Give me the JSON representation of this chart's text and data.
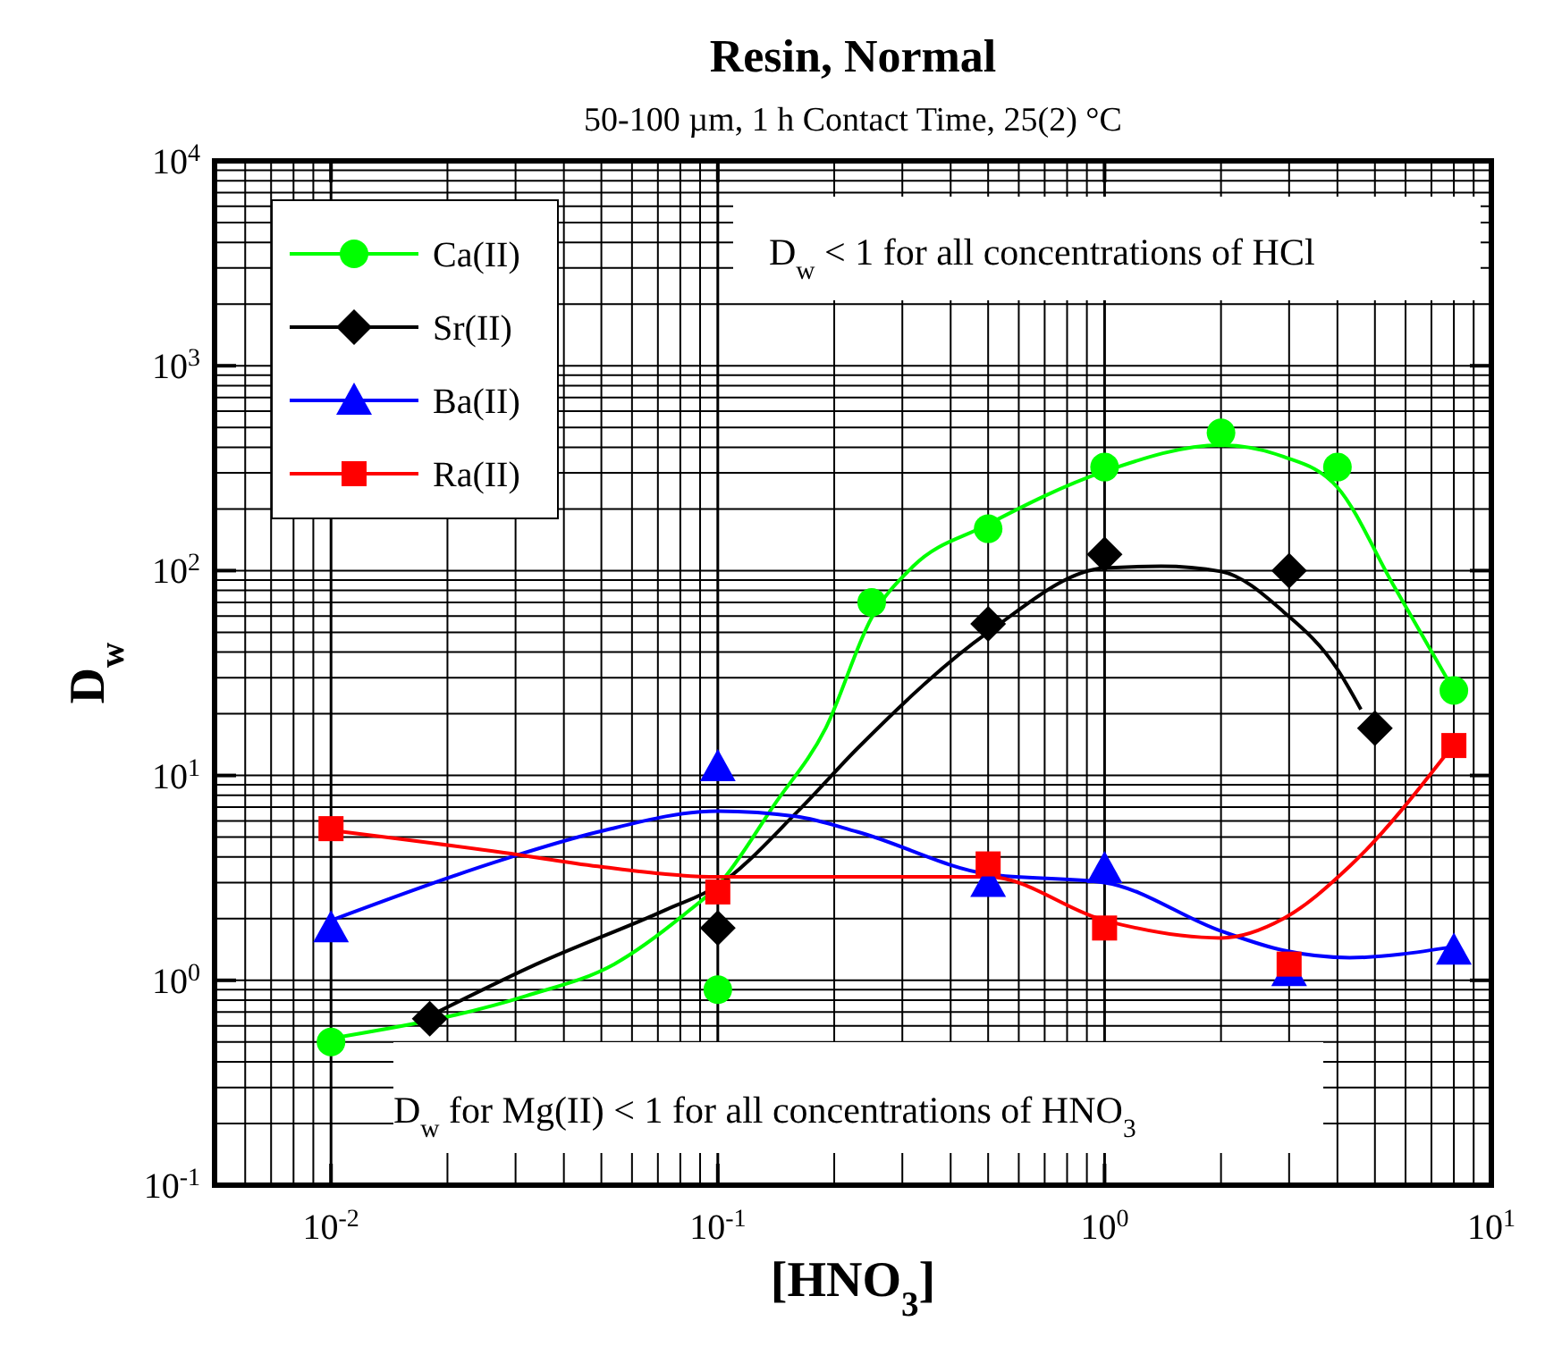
{
  "chart_data": {
    "type": "scatter",
    "title": "Resin, Normal",
    "subtitle": "50-100 µm, 1 h Contact Time, 25(2) °C",
    "xlabel": "[HNO$_{3}$]",
    "ylabel": "D$_{w}$",
    "log": "xy",
    "grid": true,
    "legend": "top left",
    "line_style": "solid",
    "xlim": [
      0.005,
      10
    ],
    "ylim": [
      0.1,
      10000
    ],
    "xticks": [
      {
        "value": 0.01,
        "label": "10$^{-2}$"
      },
      {
        "value": 0.1,
        "label": "10$^{-1}$"
      },
      {
        "value": 1,
        "label": "10$^{0}$"
      },
      {
        "value": 10,
        "label": "10$^{1}$"
      }
    ],
    "yticks": [
      {
        "value": 0.1,
        "label": "10$^{-1}$"
      },
      {
        "value": 1,
        "label": "10$^{0}$"
      },
      {
        "value": 10,
        "label": "10$^{1}$"
      },
      {
        "value": 100,
        "label": "10$^{2}$"
      },
      {
        "value": 1000,
        "label": "10$^{3}$"
      },
      {
        "value": 10000,
        "label": "10$^{4}$"
      }
    ],
    "annotations": [
      "D$_{w}$ < 1 for all concentrations of HCl",
      "D$_{w}$ for Mg(II) < 1 for all concentrations of HNO$_{3}$"
    ],
    "series": [
      {
        "name": "Ca(II)",
        "type": "scatter",
        "marker": "circle",
        "color": "#00ff00",
        "x": [
          0.01,
          0.1,
          0.25,
          0.5,
          1,
          2,
          4,
          8
        ],
        "values": [
          0.5,
          0.9,
          70,
          160,
          320,
          470,
          320,
          26
        ]
      },
      {
        "name": "Sr(II)",
        "type": "scatter",
        "marker": "diamond",
        "color": "#000000",
        "x": [
          0.018,
          0.1,
          0.5,
          1,
          3,
          5
        ],
        "values": [
          0.65,
          1.8,
          55,
          120,
          100,
          17
        ]
      },
      {
        "name": "Ba(II)",
        "type": "scatter",
        "marker": "triangle",
        "color": "#0000ff",
        "x": [
          0.01,
          0.1,
          0.5,
          1,
          3,
          8
        ],
        "values": [
          1.8,
          11,
          3,
          3.5,
          1.1,
          1.4
        ]
      },
      {
        "name": "Ra(II)",
        "type": "scatter",
        "marker": "square",
        "color": "#ff0000",
        "x": [
          0.01,
          0.1,
          0.5,
          1,
          3,
          8
        ],
        "values": [
          5.5,
          2.7,
          3.7,
          1.8,
          1.2,
          14
        ]
      },
      {
        "type": "line",
        "marker": "none",
        "color": "#00ff00",
        "x": [
          0.01,
          0.032,
          0.054,
          0.082,
          0.1,
          0.14,
          0.19,
          0.25,
          0.32,
          0.49,
          1,
          2,
          2.9,
          4,
          5.6,
          8
        ],
        "values": [
          0.52,
          0.84,
          1.2,
          2.1,
          2.9,
          7.2,
          17,
          59,
          105,
          165,
          305,
          410,
          360,
          255,
          84,
          26
        ]
      },
      {
        "type": "line",
        "marker": "none",
        "color": "#000000",
        "x": [
          0.018,
          0.034,
          0.073,
          0.1,
          0.16,
          0.23,
          0.5,
          1,
          1.4,
          2,
          2.9,
          4,
          4.6
        ],
        "values": [
          0.67,
          1.2,
          2.2,
          2.9,
          6.6,
          13.6,
          50,
          103,
          105,
          99,
          63,
          33,
          21
        ]
      },
      {
        "type": "line",
        "marker": "none",
        "color": "#0000ff",
        "x": [
          0.01,
          0.028,
          0.049,
          0.1,
          0.16,
          0.23,
          0.5,
          1,
          2,
          2.9,
          4.3,
          8
        ],
        "values": [
          1.96,
          3.9,
          5.3,
          6.7,
          6.3,
          5.3,
          3.3,
          3,
          1.74,
          1.4,
          1.29,
          1.46
        ]
      },
      {
        "type": "line",
        "marker": "none",
        "color": "#ff0000",
        "x": [
          0.01,
          0.028,
          0.049,
          0.1,
          0.23,
          0.5,
          1,
          2,
          2.9,
          4.3,
          8
        ],
        "values": [
          5.4,
          4.2,
          3.6,
          3.2,
          3.2,
          3.2,
          1.96,
          1.61,
          2,
          3.6,
          14.2
        ]
      }
    ]
  }
}
